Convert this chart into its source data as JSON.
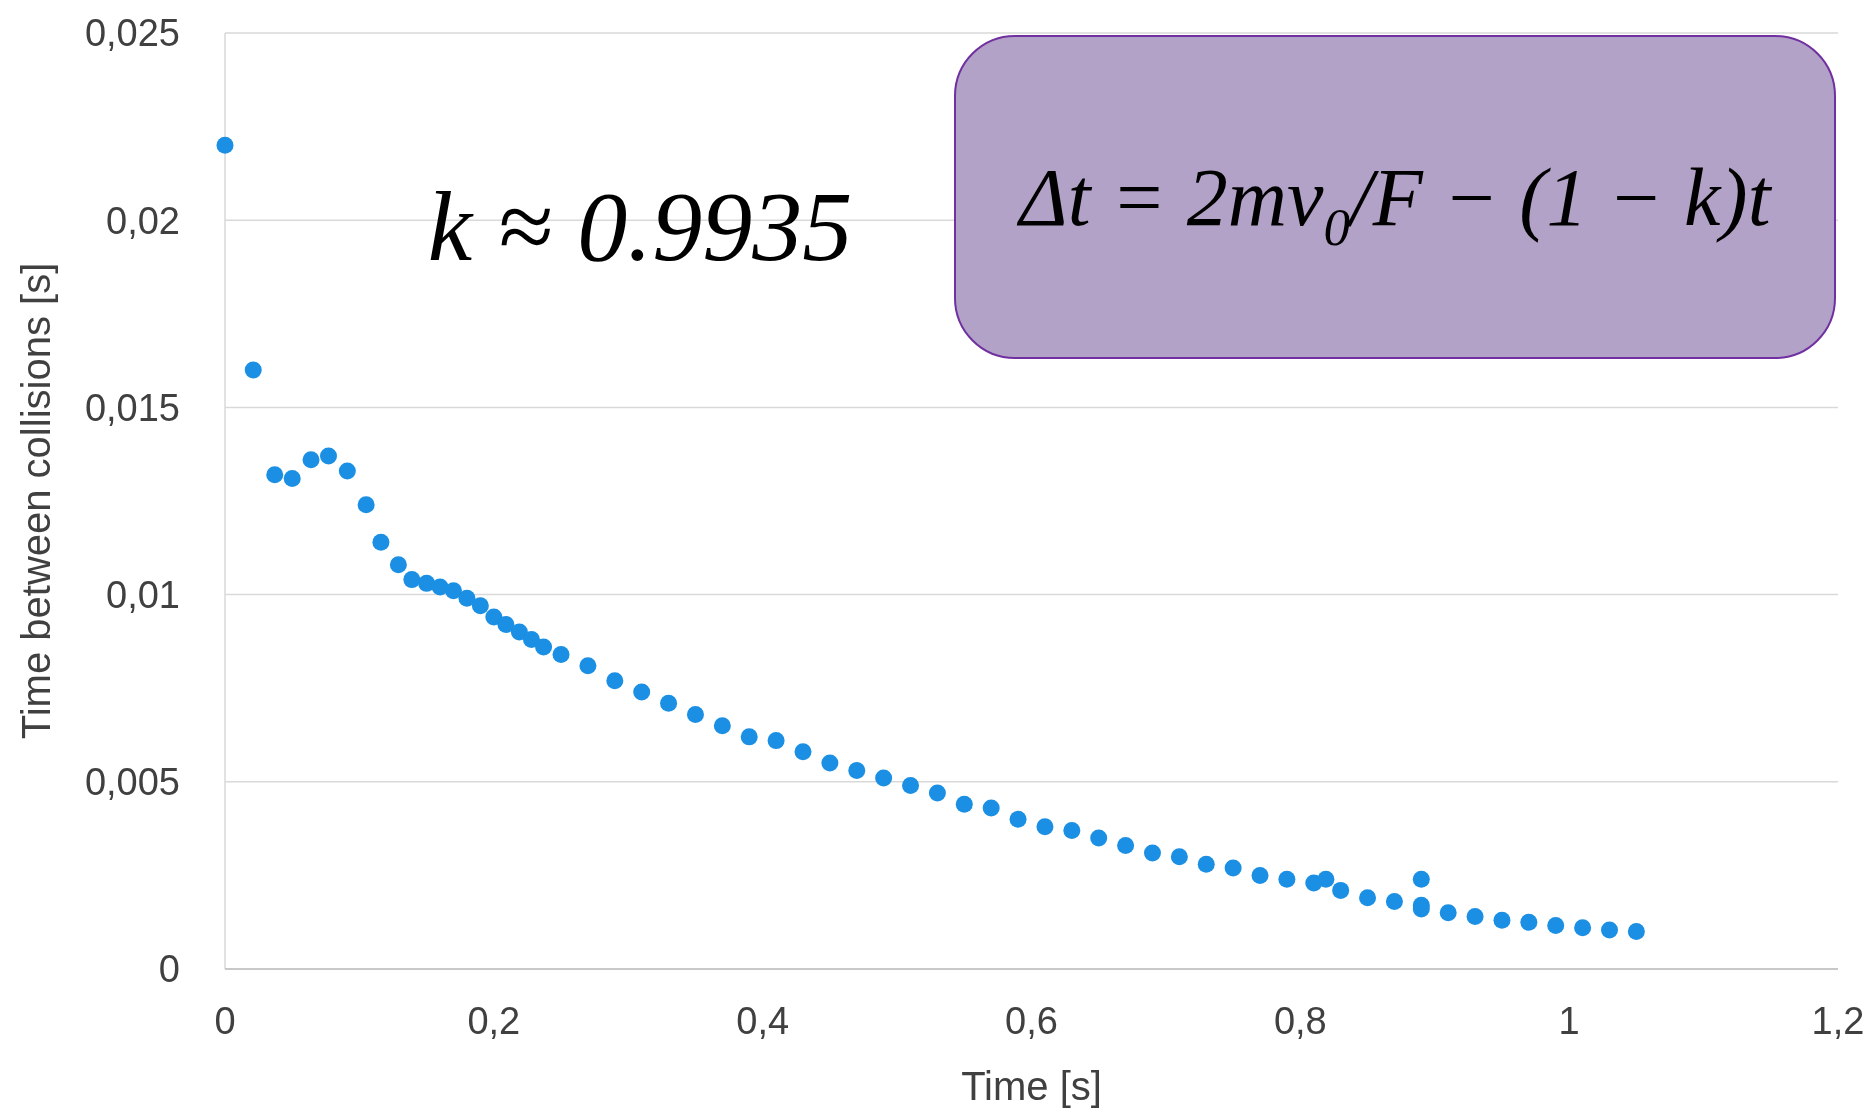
{
  "chart_data": {
    "type": "scatter",
    "xlabel": "Time [s]",
    "ylabel": "Time between collisions [s]",
    "xlim": [
      0,
      1.2
    ],
    "ylim": [
      0,
      0.025
    ],
    "xticks": [
      0,
      {
        "value": 0.2,
        "label": "0,2"
      },
      {
        "value": 0.4,
        "label": "0,4"
      },
      {
        "value": 0.6,
        "label": "0,6"
      },
      {
        "value": 0.8,
        "label": "0,8"
      },
      1,
      {
        "value": 1.2,
        "label": "1,2"
      }
    ],
    "yticks": [
      0,
      {
        "value": 0.005,
        "label": "0,005"
      },
      {
        "value": 0.01,
        "label": "0,01"
      },
      {
        "value": 0.015,
        "label": "0,015"
      },
      {
        "value": 0.02,
        "label": "0,02"
      },
      {
        "value": 0.025,
        "label": "0,025"
      }
    ],
    "grid": "y",
    "marker": "circle",
    "annotations": [
      "k ≈ 0.9935",
      "Δt = 2mv$_{0}$/F − (1 − k)t"
    ],
    "series": [
      {
        "color": "#1a8fe3",
        "x": [
          0,
          0.021,
          0.037,
          0.05,
          0.064,
          0.077,
          0.091,
          0.105,
          0.116,
          0.129,
          0.139,
          0.15,
          0.16,
          0.17,
          0.18,
          0.19,
          0.2,
          0.209,
          0.219,
          0.228,
          0.237,
          0.25,
          0.27,
          0.29,
          0.31,
          0.33,
          0.35,
          0.37,
          0.39,
          0.41,
          0.43,
          0.45,
          0.47,
          0.49,
          0.51,
          0.53,
          0.55,
          0.57,
          0.59,
          0.61,
          0.63,
          0.65,
          0.67,
          0.69,
          0.71,
          0.73,
          0.75,
          0.77,
          0.79,
          0.81,
          0.83,
          0.85,
          0.87,
          0.89,
          0.91,
          0.93,
          0.95,
          0.97,
          0.99,
          1.01,
          1.03,
          1.05,
          0.819,
          0.89,
          0.89
        ],
        "values": [
          0.022,
          0.016,
          0.0132,
          0.0131,
          0.0136,
          0.0137,
          0.0133,
          0.0124,
          0.0114,
          0.0108,
          0.0104,
          0.0103,
          0.0102,
          0.0101,
          0.0099,
          0.0097,
          0.0094,
          0.0092,
          0.009,
          0.0088,
          0.0086,
          0.0084,
          0.0081,
          0.0077,
          0.0074,
          0.0071,
          0.0068,
          0.0065,
          0.0062,
          0.0061,
          0.0058,
          0.0055,
          0.0053,
          0.0051,
          0.0049,
          0.0047,
          0.0044,
          0.0043,
          0.004,
          0.0038,
          0.0037,
          0.0035,
          0.0033,
          0.0031,
          0.003,
          0.0028,
          0.0027,
          0.0025,
          0.0024,
          0.0023,
          0.0021,
          0.0019,
          0.0018,
          0.0017,
          0.0015,
          0.0014,
          0.0013,
          0.00125,
          0.00116,
          0.0011,
          0.00104,
          0.001,
          0.0024,
          0.0024,
          0.0016
        ]
      }
    ]
  }
}
